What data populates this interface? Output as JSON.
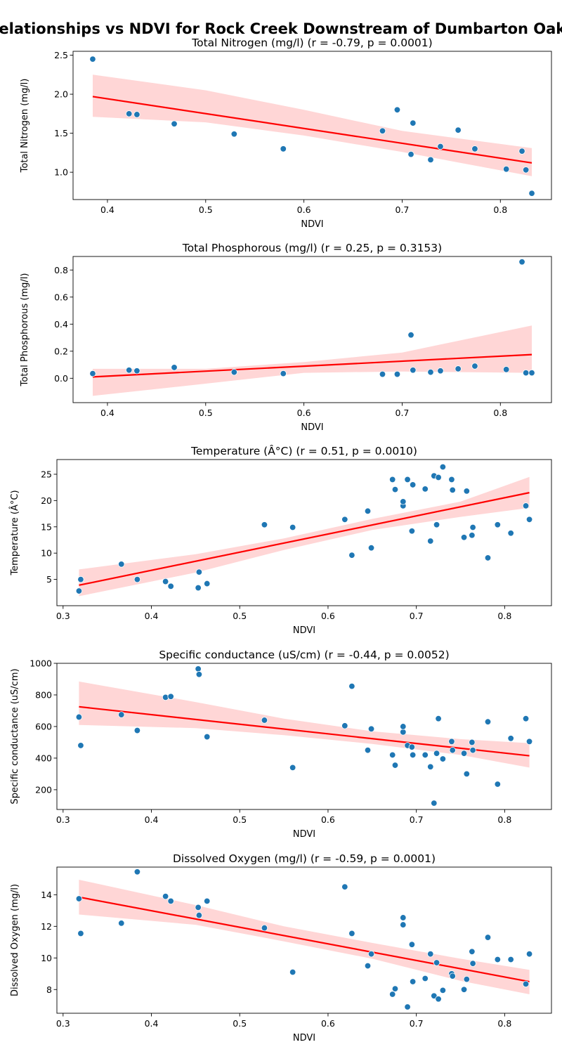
{
  "figure": {
    "suptitle": "Relationships vs NDVI for Rock Creek Downstream of Dumbarton Oaks"
  },
  "chart_data": [
    {
      "type": "scatter",
      "title": "Total Nitrogen (mg/l) (r = -0.79, p = 0.0001)",
      "xlabel": "NDVI",
      "ylabel": "Total Nitrogen (mg/l)",
      "xlim": [
        0.365,
        0.852
      ],
      "ylim": [
        0.65,
        2.55
      ],
      "xticks": [
        0.4,
        0.5,
        0.6,
        0.7,
        0.8
      ],
      "xtick_labels": [
        "0.4",
        "0.5",
        "0.6",
        "0.7",
        "0.8"
      ],
      "yticks": [
        1.0,
        1.5,
        2.0,
        2.5
      ],
      "ytick_labels": [
        "1.0",
        "1.5",
        "2.0",
        "2.5"
      ],
      "points": [
        [
          0.385,
          2.45
        ],
        [
          0.422,
          1.75
        ],
        [
          0.43,
          1.74
        ],
        [
          0.468,
          1.62
        ],
        [
          0.529,
          1.49
        ],
        [
          0.579,
          1.3
        ],
        [
          0.68,
          1.53
        ],
        [
          0.695,
          1.8
        ],
        [
          0.709,
          1.23
        ],
        [
          0.711,
          1.63
        ],
        [
          0.729,
          1.16
        ],
        [
          0.739,
          1.33
        ],
        [
          0.757,
          1.54
        ],
        [
          0.774,
          1.3
        ],
        [
          0.806,
          1.04
        ],
        [
          0.822,
          1.27
        ],
        [
          0.826,
          1.03
        ],
        [
          0.832,
          0.73
        ]
      ],
      "fit": {
        "x": [
          0.385,
          0.832
        ],
        "y": [
          1.97,
          1.12
        ]
      },
      "ci_upper": [
        [
          0.385,
          2.25
        ],
        [
          0.5,
          2.05
        ],
        [
          0.6,
          1.8
        ],
        [
          0.7,
          1.53
        ],
        [
          0.832,
          1.31
        ]
      ],
      "ci_lower": [
        [
          0.385,
          1.71
        ],
        [
          0.5,
          1.64
        ],
        [
          0.6,
          1.47
        ],
        [
          0.7,
          1.26
        ],
        [
          0.832,
          0.95
        ]
      ],
      "point_color": "#1f77b4",
      "line_color": "#ff0000",
      "band_color": "#ffd6d6"
    },
    {
      "type": "scatter",
      "title": "Total Phosphorous (mg/l) (r = 0.25, p = 0.3153)",
      "xlabel": "NDVI",
      "ylabel": "Total Phosphorous (mg/l)",
      "xlim": [
        0.365,
        0.852
      ],
      "ylim": [
        -0.18,
        0.9
      ],
      "xticks": [
        0.4,
        0.5,
        0.6,
        0.7,
        0.8
      ],
      "xtick_labels": [
        "0.4",
        "0.5",
        "0.6",
        "0.7",
        "0.8"
      ],
      "yticks": [
        0.0,
        0.2,
        0.4,
        0.6,
        0.8
      ],
      "ytick_labels": [
        "0.0",
        "0.2",
        "0.4",
        "0.6",
        "0.8"
      ],
      "points": [
        [
          0.385,
          0.035
        ],
        [
          0.422,
          0.06
        ],
        [
          0.43,
          0.055
        ],
        [
          0.468,
          0.08
        ],
        [
          0.529,
          0.045
        ],
        [
          0.579,
          0.035
        ],
        [
          0.68,
          0.03
        ],
        [
          0.695,
          0.03
        ],
        [
          0.709,
          0.32
        ],
        [
          0.711,
          0.06
        ],
        [
          0.729,
          0.045
        ],
        [
          0.739,
          0.055
        ],
        [
          0.757,
          0.07
        ],
        [
          0.774,
          0.09
        ],
        [
          0.806,
          0.065
        ],
        [
          0.822,
          0.86
        ],
        [
          0.826,
          0.04
        ],
        [
          0.832,
          0.04
        ]
      ],
      "fit": {
        "x": [
          0.385,
          0.832
        ],
        "y": [
          0.01,
          0.175
        ]
      },
      "ci_upper": [
        [
          0.385,
          0.07
        ],
        [
          0.5,
          0.07
        ],
        [
          0.6,
          0.12
        ],
        [
          0.7,
          0.19
        ],
        [
          0.832,
          0.39
        ]
      ],
      "ci_lower": [
        [
          0.385,
          -0.13
        ],
        [
          0.5,
          -0.04
        ],
        [
          0.6,
          0.04
        ],
        [
          0.7,
          0.05
        ],
        [
          0.832,
          0.04
        ]
      ],
      "point_color": "#1f77b4",
      "line_color": "#ff0000",
      "band_color": "#ffd6d6"
    },
    {
      "type": "scatter",
      "title": "Temperature (Â°C) (r = 0.51, p = 0.0010)",
      "xlabel": "NDVI",
      "ylabel": "Temperature (Â°C)",
      "xlim": [
        0.293,
        0.853
      ],
      "ylim": [
        0.0,
        27.8
      ],
      "xticks": [
        0.3,
        0.4,
        0.5,
        0.6,
        0.7,
        0.8
      ],
      "xtick_labels": [
        "0.3",
        "0.4",
        "0.5",
        "0.6",
        "0.7",
        "0.8"
      ],
      "yticks": [
        5,
        10,
        15,
        20,
        25
      ],
      "ytick_labels": [
        "5",
        "10",
        "15",
        "20",
        "25"
      ],
      "points": [
        [
          0.318,
          2.8
        ],
        [
          0.32,
          5.0
        ],
        [
          0.366,
          7.9
        ],
        [
          0.384,
          5.0
        ],
        [
          0.416,
          4.6
        ],
        [
          0.422,
          3.7
        ],
        [
          0.453,
          3.4
        ],
        [
          0.454,
          6.4
        ],
        [
          0.463,
          4.2
        ],
        [
          0.528,
          15.4
        ],
        [
          0.56,
          14.9
        ],
        [
          0.619,
          16.4
        ],
        [
          0.627,
          9.6
        ],
        [
          0.645,
          18.0
        ],
        [
          0.649,
          11.0
        ],
        [
          0.673,
          24.0
        ],
        [
          0.676,
          22.1
        ],
        [
          0.685,
          19.0
        ],
        [
          0.685,
          19.8
        ],
        [
          0.69,
          24.0
        ],
        [
          0.695,
          14.2
        ],
        [
          0.696,
          23.0
        ],
        [
          0.71,
          22.2
        ],
        [
          0.716,
          12.3
        ],
        [
          0.72,
          24.7
        ],
        [
          0.723,
          15.4
        ],
        [
          0.725,
          24.4
        ],
        [
          0.73,
          26.4
        ],
        [
          0.74,
          24.0
        ],
        [
          0.741,
          22.0
        ],
        [
          0.754,
          13.0
        ],
        [
          0.757,
          21.8
        ],
        [
          0.763,
          13.4
        ],
        [
          0.764,
          14.9
        ],
        [
          0.781,
          9.1
        ],
        [
          0.792,
          15.4
        ],
        [
          0.807,
          13.8
        ],
        [
          0.824,
          19.0
        ],
        [
          0.828,
          16.4
        ]
      ],
      "fit": {
        "x": [
          0.318,
          0.828
        ],
        "y": [
          3.9,
          21.5
        ]
      },
      "ci_upper": [
        [
          0.318,
          6.9
        ],
        [
          0.45,
          9.8
        ],
        [
          0.55,
          12.8
        ],
        [
          0.65,
          16.5
        ],
        [
          0.75,
          19.8
        ],
        [
          0.828,
          24.5
        ]
      ],
      "ci_lower": [
        [
          0.318,
          1.8
        ],
        [
          0.45,
          6.3
        ],
        [
          0.55,
          10.6
        ],
        [
          0.65,
          14.4
        ],
        [
          0.75,
          16.9
        ],
        [
          0.828,
          18.6
        ]
      ],
      "point_color": "#1f77b4",
      "line_color": "#ff0000",
      "band_color": "#ffd6d6"
    },
    {
      "type": "scatter",
      "title": "Specific conductance (uS/cm) (r = -0.44, p = 0.0052)",
      "xlabel": "NDVI",
      "ylabel": "Specific conductance (uS/cm)",
      "xlim": [
        0.293,
        0.853
      ],
      "ylim": [
        75,
        1000
      ],
      "xticks": [
        0.3,
        0.4,
        0.5,
        0.6,
        0.7,
        0.8
      ],
      "xtick_labels": [
        "0.3",
        "0.4",
        "0.5",
        "0.6",
        "0.7",
        "0.8"
      ],
      "yticks": [
        200,
        400,
        600,
        800,
        1000
      ],
      "ytick_labels": [
        "200",
        "400",
        "600",
        "800",
        "1000"
      ],
      "points": [
        [
          0.318,
          660
        ],
        [
          0.32,
          480
        ],
        [
          0.366,
          675
        ],
        [
          0.384,
          575
        ],
        [
          0.416,
          785
        ],
        [
          0.422,
          790
        ],
        [
          0.453,
          965
        ],
        [
          0.454,
          930
        ],
        [
          0.463,
          535
        ],
        [
          0.528,
          640
        ],
        [
          0.56,
          340
        ],
        [
          0.619,
          605
        ],
        [
          0.627,
          855
        ],
        [
          0.645,
          450
        ],
        [
          0.649,
          585
        ],
        [
          0.673,
          420
        ],
        [
          0.676,
          355
        ],
        [
          0.685,
          565
        ],
        [
          0.685,
          600
        ],
        [
          0.69,
          480
        ],
        [
          0.695,
          470
        ],
        [
          0.696,
          420
        ],
        [
          0.71,
          420
        ],
        [
          0.716,
          345
        ],
        [
          0.72,
          115
        ],
        [
          0.723,
          430
        ],
        [
          0.725,
          650
        ],
        [
          0.73,
          395
        ],
        [
          0.74,
          505
        ],
        [
          0.741,
          450
        ],
        [
          0.754,
          430
        ],
        [
          0.757,
          300
        ],
        [
          0.763,
          500
        ],
        [
          0.764,
          450
        ],
        [
          0.781,
          630
        ],
        [
          0.792,
          235
        ],
        [
          0.807,
          525
        ],
        [
          0.824,
          650
        ],
        [
          0.828,
          505
        ]
      ],
      "fit": {
        "x": [
          0.318,
          0.828
        ],
        "y": [
          725,
          415
        ]
      },
      "ci_upper": [
        [
          0.318,
          885
        ],
        [
          0.45,
          755
        ],
        [
          0.55,
          650
        ],
        [
          0.65,
          570
        ],
        [
          0.75,
          520
        ],
        [
          0.828,
          495
        ]
      ],
      "ci_lower": [
        [
          0.318,
          610
        ],
        [
          0.45,
          590
        ],
        [
          0.55,
          545
        ],
        [
          0.65,
          490
        ],
        [
          0.75,
          420
        ],
        [
          0.828,
          340
        ]
      ],
      "point_color": "#1f77b4",
      "line_color": "#ff0000",
      "band_color": "#ffd6d6"
    },
    {
      "type": "scatter",
      "title": "Dissolved Oxygen (mg/l) (r = -0.59, p = 0.0001)",
      "xlabel": "NDVI",
      "ylabel": "Dissolved Oxygen (mg/l)",
      "xlim": [
        0.293,
        0.853
      ],
      "ylim": [
        6.5,
        15.75
      ],
      "xticks": [
        0.3,
        0.4,
        0.5,
        0.6,
        0.7,
        0.8
      ],
      "xtick_labels": [
        "0.3",
        "0.4",
        "0.5",
        "0.6",
        "0.7",
        "0.8"
      ],
      "yticks": [
        8,
        10,
        12,
        14
      ],
      "ytick_labels": [
        "8",
        "10",
        "12",
        "14"
      ],
      "points": [
        [
          0.318,
          13.75
        ],
        [
          0.32,
          11.55
        ],
        [
          0.366,
          12.2
        ],
        [
          0.384,
          15.45
        ],
        [
          0.416,
          13.9
        ],
        [
          0.422,
          13.6
        ],
        [
          0.453,
          13.2
        ],
        [
          0.454,
          12.7
        ],
        [
          0.463,
          13.6
        ],
        [
          0.528,
          11.9
        ],
        [
          0.56,
          9.1
        ],
        [
          0.619,
          14.5
        ],
        [
          0.627,
          11.55
        ],
        [
          0.645,
          9.5
        ],
        [
          0.649,
          10.25
        ],
        [
          0.673,
          7.7
        ],
        [
          0.676,
          8.05
        ],
        [
          0.685,
          12.1
        ],
        [
          0.685,
          12.55
        ],
        [
          0.69,
          6.9
        ],
        [
          0.695,
          10.85
        ],
        [
          0.696,
          8.5
        ],
        [
          0.71,
          8.7
        ],
        [
          0.716,
          10.25
        ],
        [
          0.72,
          7.6
        ],
        [
          0.723,
          9.7
        ],
        [
          0.725,
          7.4
        ],
        [
          0.73,
          7.95
        ],
        [
          0.74,
          9.0
        ],
        [
          0.741,
          8.85
        ],
        [
          0.754,
          8.0
        ],
        [
          0.757,
          8.65
        ],
        [
          0.763,
          10.4
        ],
        [
          0.764,
          9.65
        ],
        [
          0.781,
          11.3
        ],
        [
          0.792,
          9.9
        ],
        [
          0.807,
          9.9
        ],
        [
          0.824,
          8.35
        ],
        [
          0.828,
          10.25
        ]
      ],
      "fit": {
        "x": [
          0.318,
          0.828
        ],
        "y": [
          13.85,
          8.5
        ]
      },
      "ci_upper": [
        [
          0.318,
          14.95
        ],
        [
          0.45,
          13.35
        ],
        [
          0.55,
          12.0
        ],
        [
          0.65,
          10.95
        ],
        [
          0.75,
          9.95
        ],
        [
          0.828,
          9.25
        ]
      ],
      "ci_lower": [
        [
          0.318,
          12.75
        ],
        [
          0.45,
          12.1
        ],
        [
          0.55,
          11.05
        ],
        [
          0.65,
          9.95
        ],
        [
          0.75,
          8.55
        ],
        [
          0.828,
          7.7
        ]
      ],
      "point_color": "#1f77b4",
      "line_color": "#ff0000",
      "band_color": "#ffd6d6"
    }
  ]
}
